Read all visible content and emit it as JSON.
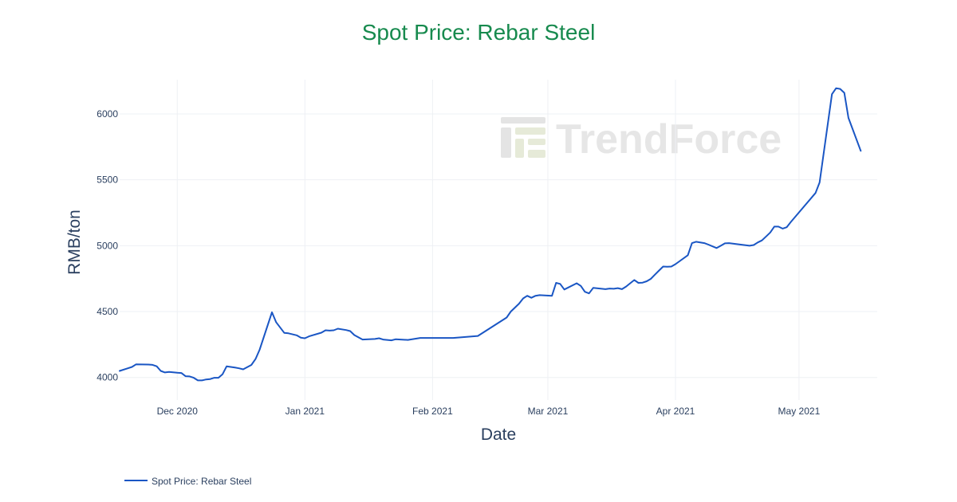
{
  "chart_data": {
    "type": "line",
    "title": "Spot Price: Rebar Steel",
    "xlabel": "Date",
    "ylabel": "RMB/ton",
    "ylim": [
      3930,
      6300
    ],
    "xlim": [
      "2020-11-17",
      "2021-05-20"
    ],
    "grid": true,
    "legend_position": "bottom-left",
    "colors": {
      "title": "#178a4e",
      "series": "#1a56c4",
      "grid": "#eef0f4",
      "text": "#2a3f5f"
    },
    "y_ticks": [
      {
        "value": 4000,
        "label": "4000"
      },
      {
        "value": 4500,
        "label": "4500"
      },
      {
        "value": 5000,
        "label": "5000"
      },
      {
        "value": 5500,
        "label": "5500"
      },
      {
        "value": 6000,
        "label": "6000"
      }
    ],
    "x_ticks": [
      {
        "value": "2020-12-01",
        "label": "Dec 2020"
      },
      {
        "value": "2021-01-01",
        "label": "Jan 2021"
      },
      {
        "value": "2021-02-01",
        "label": "Feb 2021"
      },
      {
        "value": "2021-03-01",
        "label": "Mar 2021"
      },
      {
        "value": "2021-04-01",
        "label": "Apr 2021"
      },
      {
        "value": "2021-05-01",
        "label": "May 2021"
      }
    ],
    "watermark": "TrendForce",
    "series": [
      {
        "name": "Spot Price: Rebar Steel",
        "color": "#1a56c4",
        "points": [
          [
            "2020-11-17",
            4050
          ],
          [
            "2020-11-19",
            4070
          ],
          [
            "2020-11-20",
            4080
          ],
          [
            "2020-11-21",
            4100
          ],
          [
            "2020-11-24",
            4098
          ],
          [
            "2020-11-25",
            4096
          ],
          [
            "2020-11-26",
            4085
          ],
          [
            "2020-11-27",
            4050
          ],
          [
            "2020-11-28",
            4038
          ],
          [
            "2020-11-29",
            4042
          ],
          [
            "2020-12-01",
            4036
          ],
          [
            "2020-12-02",
            4034
          ],
          [
            "2020-12-03",
            4010
          ],
          [
            "2020-12-04",
            4008
          ],
          [
            "2020-12-05",
            3998
          ],
          [
            "2020-12-06",
            3978
          ],
          [
            "2020-12-07",
            3978
          ],
          [
            "2020-12-08",
            3985
          ],
          [
            "2020-12-09",
            3988
          ],
          [
            "2020-12-10",
            3998
          ],
          [
            "2020-12-11",
            3998
          ],
          [
            "2020-12-12",
            4025
          ],
          [
            "2020-12-13",
            4085
          ],
          [
            "2020-12-14",
            4080
          ],
          [
            "2020-12-15",
            4075
          ],
          [
            "2020-12-16",
            4070
          ],
          [
            "2020-12-17",
            4062
          ],
          [
            "2020-12-19",
            4095
          ],
          [
            "2020-12-20",
            4140
          ],
          [
            "2020-12-21",
            4210
          ],
          [
            "2020-12-24",
            4495
          ],
          [
            "2020-12-25",
            4420
          ],
          [
            "2020-12-27",
            4338
          ],
          [
            "2020-12-28",
            4335
          ],
          [
            "2020-12-30",
            4320
          ],
          [
            "2020-12-31",
            4302
          ],
          [
            "2021-01-01",
            4298
          ],
          [
            "2021-01-02",
            4312
          ],
          [
            "2021-01-05",
            4340
          ],
          [
            "2021-01-06",
            4358
          ],
          [
            "2021-01-07",
            4356
          ],
          [
            "2021-01-08",
            4358
          ],
          [
            "2021-01-09",
            4370
          ],
          [
            "2021-01-11",
            4360
          ],
          [
            "2021-01-12",
            4352
          ],
          [
            "2021-01-13",
            4322
          ],
          [
            "2021-01-15",
            4288
          ],
          [
            "2021-01-18",
            4292
          ],
          [
            "2021-01-19",
            4298
          ],
          [
            "2021-01-20",
            4288
          ],
          [
            "2021-01-21",
            4285
          ],
          [
            "2021-01-22",
            4282
          ],
          [
            "2021-01-23",
            4290
          ],
          [
            "2021-01-26",
            4285
          ],
          [
            "2021-01-29",
            4300
          ],
          [
            "2021-02-06",
            4300
          ],
          [
            "2021-02-12",
            4315
          ],
          [
            "2021-02-19",
            4455
          ],
          [
            "2021-02-20",
            4500
          ],
          [
            "2021-02-22",
            4560
          ],
          [
            "2021-02-23",
            4600
          ],
          [
            "2021-02-24",
            4620
          ],
          [
            "2021-02-25",
            4605
          ],
          [
            "2021-02-26",
            4620
          ],
          [
            "2021-02-27",
            4625
          ],
          [
            "2021-03-02",
            4620
          ],
          [
            "2021-03-03",
            4718
          ],
          [
            "2021-03-04",
            4710
          ],
          [
            "2021-03-05",
            4668
          ],
          [
            "2021-03-08",
            4715
          ],
          [
            "2021-03-09",
            4695
          ],
          [
            "2021-03-10",
            4650
          ],
          [
            "2021-03-11",
            4638
          ],
          [
            "2021-03-12",
            4680
          ],
          [
            "2021-03-15",
            4670
          ],
          [
            "2021-03-16",
            4675
          ],
          [
            "2021-03-17",
            4673
          ],
          [
            "2021-03-18",
            4678
          ],
          [
            "2021-03-19",
            4670
          ],
          [
            "2021-03-20",
            4690
          ],
          [
            "2021-03-21",
            4715
          ],
          [
            "2021-03-22",
            4740
          ],
          [
            "2021-03-23",
            4718
          ],
          [
            "2021-03-24",
            4720
          ],
          [
            "2021-03-25",
            4730
          ],
          [
            "2021-03-26",
            4748
          ],
          [
            "2021-03-27",
            4780
          ],
          [
            "2021-03-28",
            4812
          ],
          [
            "2021-03-29",
            4842
          ],
          [
            "2021-03-30",
            4840
          ],
          [
            "2021-03-31",
            4842
          ],
          [
            "2021-04-01",
            4860
          ],
          [
            "2021-04-04",
            4928
          ],
          [
            "2021-04-05",
            5020
          ],
          [
            "2021-04-06",
            5030
          ],
          [
            "2021-04-08",
            5020
          ],
          [
            "2021-04-09",
            5008
          ],
          [
            "2021-04-11",
            4982
          ],
          [
            "2021-04-12",
            5000
          ],
          [
            "2021-04-13",
            5018
          ],
          [
            "2021-04-14",
            5020
          ],
          [
            "2021-04-19",
            5000
          ],
          [
            "2021-04-20",
            5005
          ],
          [
            "2021-04-21",
            5025
          ],
          [
            "2021-04-22",
            5040
          ],
          [
            "2021-04-23",
            5070
          ],
          [
            "2021-04-24",
            5100
          ],
          [
            "2021-04-25",
            5145
          ],
          [
            "2021-04-26",
            5145
          ],
          [
            "2021-04-27",
            5130
          ],
          [
            "2021-04-28",
            5140
          ],
          [
            "2021-04-29",
            5180
          ],
          [
            "2021-05-05",
            5400
          ],
          [
            "2021-05-06",
            5480
          ],
          [
            "2021-05-09",
            6150
          ],
          [
            "2021-05-10",
            6195
          ],
          [
            "2021-05-11",
            6190
          ],
          [
            "2021-05-12",
            6160
          ],
          [
            "2021-05-13",
            5970
          ],
          [
            "2021-05-16",
            5720
          ]
        ]
      }
    ]
  }
}
